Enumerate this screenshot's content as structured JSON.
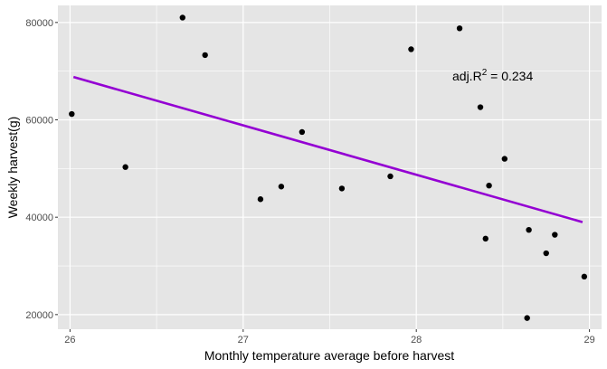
{
  "chart_data": {
    "type": "scatter",
    "title": "",
    "xlabel": "Monthly temperature average before harvest",
    "ylabel": "Weekly harvest(g)",
    "xlim": [
      25.93,
      29.07
    ],
    "ylim": [
      17000,
      83500
    ],
    "x_ticks": [
      26,
      27,
      28,
      29
    ],
    "y_ticks": [
      20000,
      40000,
      60000,
      80000
    ],
    "x_tick_labels": [
      "26",
      "27",
      "28",
      "29"
    ],
    "y_tick_labels": [
      "20000",
      "40000",
      "60000",
      "80000"
    ],
    "grid": true,
    "legend": "none",
    "points": [
      {
        "x": 26.01,
        "y": 61200
      },
      {
        "x": 26.32,
        "y": 50300
      },
      {
        "x": 26.65,
        "y": 81000
      },
      {
        "x": 26.78,
        "y": 73300
      },
      {
        "x": 27.1,
        "y": 43700
      },
      {
        "x": 27.22,
        "y": 46300
      },
      {
        "x": 27.34,
        "y": 57500
      },
      {
        "x": 27.57,
        "y": 45900
      },
      {
        "x": 27.85,
        "y": 48400
      },
      {
        "x": 27.97,
        "y": 74500
      },
      {
        "x": 28.25,
        "y": 78800
      },
      {
        "x": 28.37,
        "y": 62600
      },
      {
        "x": 28.4,
        "y": 35600
      },
      {
        "x": 28.42,
        "y": 46500
      },
      {
        "x": 28.51,
        "y": 52000
      },
      {
        "x": 28.64,
        "y": 19300
      },
      {
        "x": 28.65,
        "y": 37400
      },
      {
        "x": 28.75,
        "y": 32600
      },
      {
        "x": 28.8,
        "y": 36400
      },
      {
        "x": 28.97,
        "y": 27800
      }
    ],
    "trend_line": {
      "x": [
        26.02,
        28.96
      ],
      "y": [
        68800,
        39000
      ],
      "color": "#9400D3"
    },
    "annotation": {
      "prefix": "adj.R",
      "superscript": "2",
      "suffix": " = 0.234"
    },
    "colors": {
      "panel": "#E5E5E5",
      "grid": "#FFFFFF",
      "point": "#000000"
    }
  }
}
